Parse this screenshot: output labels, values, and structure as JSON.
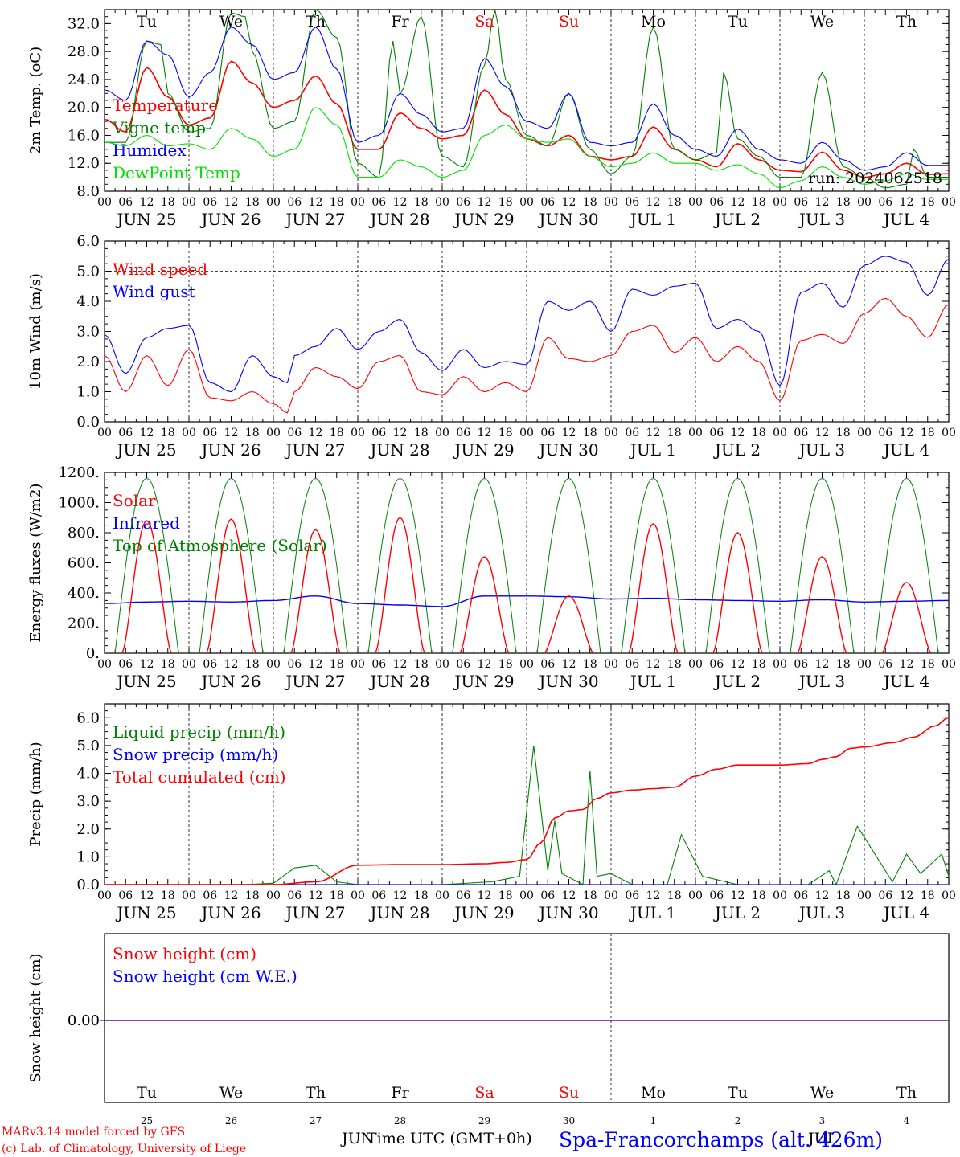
{
  "meta": {
    "run": "run: 2024062518",
    "model": "MARv3.14 model forced by GFS",
    "copyright": "(c) Lab. of Climatology, University of Liege",
    "time_label": "Time UTC (GMT+0h)",
    "location": "Spa-Francorchamps (alt. 426m)",
    "month_left": "JUN",
    "month_right": "JUL",
    "hour_ticks": [
      "00",
      "06",
      "12",
      "18"
    ],
    "last_hour": "00",
    "dates": [
      "JUN 25",
      "JUN 26",
      "JUN 27",
      "JUN 28",
      "JUN 29",
      "JUN 30",
      "JUL  1",
      "JUL  2",
      "JUL  3",
      "JUL  4"
    ],
    "day_names": [
      "Tu",
      "We",
      "Th",
      "Fr",
      "Sa",
      "Su",
      "Mo",
      "Tu",
      "We",
      "Th"
    ],
    "day_numbers": [
      "25",
      "26",
      "27",
      "28",
      "29",
      "30",
      "1",
      "2",
      "3",
      "4"
    ],
    "weekend_days": [
      4,
      5
    ],
    "colors": {
      "red": "#ff0000",
      "green": "#008000",
      "blue": "#0000ff",
      "lightgreen": "#00e000",
      "purple": "#8000a0"
    }
  },
  "chart_data": [
    {
      "type": "line",
      "ylabel": "2m Temp. (oC)",
      "ylim": [
        8,
        34
      ],
      "yticks": [
        "8.0",
        "12.0",
        "16.0",
        "20.0",
        "24.0",
        "28.0",
        "32.0"
      ],
      "series": [
        {
          "name": "Temperature",
          "color": "#ff0000",
          "x": [
            0,
            6,
            12,
            18,
            24,
            30,
            36,
            42,
            48,
            54,
            60,
            66,
            72,
            78,
            84,
            90,
            96,
            102,
            108,
            114,
            120,
            126,
            132,
            138,
            144,
            150,
            156,
            162,
            168,
            174,
            180,
            186,
            192,
            198,
            204,
            210,
            216,
            222,
            228,
            234,
            240
          ],
          "values": [
            18.3,
            16.5,
            25.7,
            21.5,
            17.5,
            18.5,
            26.6,
            23.5,
            20,
            21,
            24.5,
            20.5,
            14,
            14,
            19.2,
            17,
            15.5,
            16,
            22.5,
            19,
            15.5,
            14.5,
            16,
            13,
            12.5,
            13,
            17.2,
            14,
            12.5,
            11.5,
            14.8,
            12.5,
            11,
            10.8,
            13.6,
            11,
            10,
            10.5,
            12,
            10.4,
            10.5
          ]
        },
        {
          "name": "Vigne temp",
          "color": "#008000",
          "x": [
            0,
            6,
            12,
            16,
            18,
            24,
            30,
            36,
            40,
            42,
            48,
            54,
            60,
            66,
            72,
            78,
            82,
            84,
            90,
            96,
            102,
            108,
            111,
            114,
            120,
            126,
            132,
            138,
            144,
            150,
            156,
            162,
            168,
            174,
            176,
            180,
            186,
            192,
            198,
            204,
            210,
            216,
            222,
            228,
            230,
            234,
            240
          ],
          "values": [
            15,
            15,
            29.5,
            29,
            22,
            16.5,
            17,
            33.5,
            33,
            28,
            17,
            18,
            34,
            30,
            12,
            10,
            29.5,
            22,
            33,
            13,
            11.5,
            26,
            34,
            24,
            16,
            14.5,
            22,
            14,
            10.5,
            13,
            31.5,
            14,
            12.5,
            13.5,
            25,
            15.5,
            13,
            10,
            10,
            25,
            11.5,
            10,
            8.5,
            9,
            14,
            10,
            10
          ]
        },
        {
          "name": "Humidex",
          "color": "#0000ff",
          "x": [
            0,
            6,
            12,
            18,
            24,
            30,
            36,
            42,
            48,
            54,
            60,
            66,
            72,
            78,
            84,
            90,
            96,
            102,
            108,
            114,
            120,
            126,
            132,
            138,
            144,
            150,
            156,
            162,
            168,
            174,
            180,
            186,
            192,
            198,
            204,
            210,
            216,
            222,
            228,
            234,
            240
          ],
          "values": [
            22.5,
            21,
            29.5,
            27.5,
            21.5,
            25,
            31.5,
            29,
            24,
            25,
            31.5,
            25.5,
            15,
            16,
            22,
            19,
            16.5,
            17,
            27,
            23,
            18,
            17,
            22,
            15,
            14.5,
            15,
            20.5,
            16,
            14,
            13,
            16.9,
            14,
            12.5,
            12,
            15,
            12.5,
            11,
            11.5,
            13.5,
            11.7,
            11.7
          ]
        },
        {
          "name": "DewPoint Temp",
          "color": "#00e000",
          "x": [
            0,
            6,
            12,
            18,
            24,
            30,
            36,
            42,
            48,
            54,
            60,
            66,
            72,
            78,
            84,
            90,
            96,
            102,
            108,
            114,
            120,
            126,
            132,
            138,
            144,
            150,
            156,
            162,
            168,
            174,
            180,
            186,
            192,
            198,
            204,
            210,
            216,
            222,
            228,
            234,
            240
          ],
          "values": [
            15,
            14.5,
            16,
            14.5,
            14.8,
            14,
            17,
            15.5,
            13,
            14,
            20,
            17.5,
            10,
            10,
            12.5,
            11.5,
            10,
            11,
            16,
            17.5,
            15.5,
            15,
            15.5,
            13,
            11.5,
            12,
            13.5,
            12,
            12,
            11,
            11.8,
            10.5,
            8.5,
            9.5,
            11.5,
            10,
            9,
            9.5,
            10.5,
            9.7,
            9.7
          ]
        }
      ]
    },
    {
      "type": "line",
      "ylabel": "10m Wind (m/s)",
      "ylim": [
        0,
        6
      ],
      "yticks": [
        "0.0",
        "1.0",
        "2.0",
        "3.0",
        "4.0",
        "5.0",
        "6.0"
      ],
      "ref_line": 5,
      "series": [
        {
          "name": "Wind speed",
          "color": "#ff0000",
          "x": [
            0,
            6,
            12,
            18,
            24,
            30,
            36,
            42,
            48,
            52,
            54,
            60,
            66,
            72,
            78,
            84,
            90,
            96,
            102,
            108,
            114,
            120,
            126,
            132,
            138,
            144,
            150,
            156,
            162,
            168,
            174,
            180,
            186,
            192,
            198,
            204,
            210,
            216,
            222,
            228,
            234,
            240
          ],
          "values": [
            2.2,
            1.0,
            2.2,
            1.2,
            2.4,
            0.8,
            0.7,
            1.0,
            0.6,
            0.3,
            1.0,
            1.8,
            1.5,
            1.1,
            2.0,
            2.2,
            1.0,
            0.9,
            1.5,
            1.0,
            1.3,
            1.0,
            2.8,
            2.1,
            2.0,
            2.2,
            3.0,
            3.2,
            2.3,
            2.8,
            2.0,
            2.5,
            2.0,
            0.7,
            2.7,
            2.9,
            2.6,
            3.6,
            4.1,
            3.5,
            2.8,
            3.9
          ]
        },
        {
          "name": "Wind gust",
          "color": "#0000ff",
          "x": [
            0,
            6,
            12,
            18,
            24,
            30,
            36,
            42,
            48,
            52,
            54,
            60,
            66,
            72,
            78,
            84,
            90,
            96,
            102,
            108,
            114,
            120,
            126,
            132,
            138,
            144,
            150,
            156,
            162,
            168,
            174,
            180,
            186,
            192,
            198,
            204,
            210,
            216,
            222,
            228,
            234,
            240
          ],
          "values": [
            2.9,
            1.6,
            2.8,
            3.1,
            3.2,
            1.3,
            1.0,
            2.2,
            1.5,
            1.3,
            2.2,
            2.5,
            3.1,
            2.4,
            3.0,
            3.4,
            2.3,
            1.7,
            2.4,
            1.8,
            2.0,
            1.9,
            4.0,
            3.7,
            4.0,
            3.0,
            4.4,
            4.2,
            4.5,
            4.6,
            3.1,
            3.4,
            3.0,
            1.2,
            4.3,
            4.6,
            3.8,
            5.2,
            5.5,
            5.3,
            4.2,
            5.4
          ]
        }
      ]
    },
    {
      "type": "line",
      "ylabel": "Energy fluxes (W/m2)",
      "ylim": [
        0,
        1200
      ],
      "yticks": [
        "0.",
        "200.",
        "400.",
        "600.",
        "800.",
        "1000.",
        "1200."
      ],
      "series": [
        {
          "name": "Solar",
          "color": "#ff0000",
          "peaks": [
            [
              12,
              880
            ],
            [
              36,
              890
            ],
            [
              60,
              820
            ],
            [
              84,
              900
            ],
            [
              108,
              640
            ],
            [
              132,
              380
            ],
            [
              156,
              860
            ],
            [
              180,
              800
            ],
            [
              204,
              640
            ],
            [
              228,
              470
            ]
          ]
        },
        {
          "name": "Infrared",
          "color": "#0000ff",
          "x": [
            0,
            12,
            24,
            36,
            48,
            60,
            72,
            84,
            96,
            108,
            120,
            132,
            144,
            156,
            168,
            180,
            192,
            204,
            216,
            228,
            240
          ],
          "values": [
            330,
            340,
            345,
            340,
            350,
            380,
            330,
            320,
            310,
            380,
            380,
            375,
            360,
            365,
            355,
            350,
            345,
            355,
            340,
            345,
            350
          ]
        },
        {
          "name": "Top of Atmosphere (Solar)",
          "color": "#008000",
          "peak": 1160,
          "sunrise": 3,
          "sunset": 21
        }
      ]
    },
    {
      "type": "line",
      "ylabel": "Precip (mm/h)",
      "ylim": [
        0,
        6.5
      ],
      "yticks": [
        "0.0",
        "1.0",
        "2.0",
        "3.0",
        "4.0",
        "5.0",
        "6.0"
      ],
      "series": [
        {
          "name": "Liquid precip (mm/h)",
          "color": "#008000",
          "x": [
            0,
            40,
            48,
            54,
            60,
            66,
            72,
            80,
            96,
            110,
            118,
            122,
            126,
            128,
            130,
            136,
            138,
            140,
            144,
            150,
            160,
            164,
            170,
            180,
            190,
            200,
            206,
            208,
            214,
            224,
            228,
            232,
            238,
            240
          ],
          "values": [
            0,
            0,
            0.05,
            0.6,
            0.7,
            0.1,
            0,
            0,
            0,
            0.1,
            0.3,
            5.0,
            0.5,
            2.3,
            0.4,
            0,
            4.1,
            0.3,
            0.4,
            0,
            0,
            1.8,
            0.3,
            0,
            0,
            0,
            0.5,
            0,
            2.1,
            0.1,
            1.1,
            0.4,
            1.1,
            0.3
          ]
        },
        {
          "name": "Snow precip (mm/h)",
          "color": "#0000ff",
          "x": [
            0,
            240
          ],
          "values": [
            0,
            0
          ]
        },
        {
          "name": "Total cumulated (cm)",
          "color": "#ff0000",
          "x": [
            0,
            48,
            60,
            72,
            84,
            96,
            108,
            114,
            120,
            124,
            128,
            132,
            136,
            140,
            144,
            150,
            156,
            162,
            168,
            174,
            180,
            192,
            200,
            204,
            208,
            212,
            216,
            224,
            230,
            236,
            240
          ],
          "values": [
            0,
            0,
            0.1,
            0.7,
            0.72,
            0.72,
            0.75,
            0.8,
            0.9,
            1.5,
            2.4,
            2.65,
            2.7,
            3.1,
            3.3,
            3.4,
            3.45,
            3.5,
            3.9,
            4.15,
            4.3,
            4.3,
            4.35,
            4.5,
            4.6,
            4.9,
            4.95,
            5.1,
            5.3,
            5.7,
            6.0
          ]
        }
      ]
    },
    {
      "type": "line",
      "ylabel": "Snow height (cm)",
      "yticks": [
        "0.00"
      ],
      "series": [
        {
          "name": "Snow height (cm)",
          "color": "#ff0000",
          "x": [
            0,
            240
          ],
          "values": [
            0,
            0
          ]
        },
        {
          "name": "Snow height (cm W.E.)",
          "color": "#0000ff",
          "x": [
            0,
            240
          ],
          "values": [
            0,
            0
          ]
        }
      ]
    }
  ]
}
